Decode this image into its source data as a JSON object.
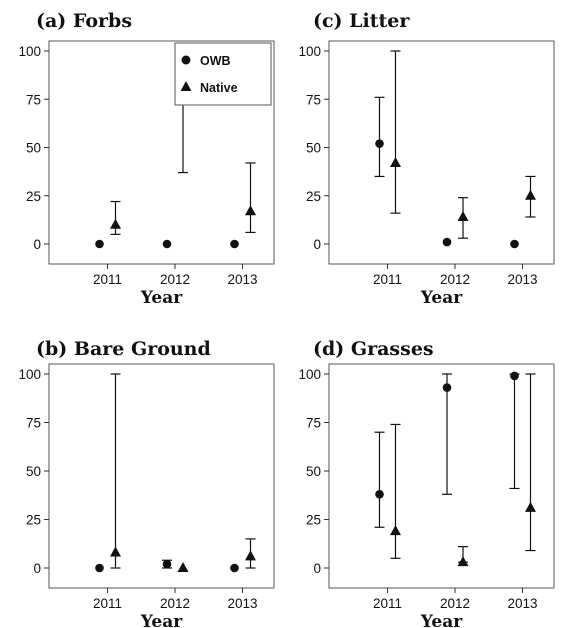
{
  "chart_data": [
    {
      "type": "scatter",
      "title": "(a) Forbs",
      "xlabel": "Year",
      "ylabel": "",
      "categories": [
        "2011",
        "2012",
        "2013"
      ],
      "ylim": [
        0,
        100
      ],
      "yticks": [
        0,
        25,
        50,
        75,
        100
      ],
      "legend": {
        "placement": "top-right",
        "entries": [
          "OWB",
          "Native"
        ]
      },
      "series": [
        {
          "name": "OWB",
          "marker": "circle",
          "values": [
            0,
            0,
            0
          ],
          "lower": [
            0,
            0,
            0
          ],
          "upper": [
            0,
            0,
            0
          ]
        },
        {
          "name": "Native",
          "marker": "triangle",
          "values": [
            10,
            95,
            17
          ],
          "lower": [
            5,
            37,
            6
          ],
          "upper": [
            22,
            100,
            42
          ]
        }
      ]
    },
    {
      "type": "scatter",
      "title": "(c) Litter",
      "xlabel": "Year",
      "ylabel": "",
      "categories": [
        "2011",
        "2012",
        "2013"
      ],
      "ylim": [
        0,
        100
      ],
      "yticks": [
        0,
        25,
        50,
        75,
        100
      ],
      "series": [
        {
          "name": "OWB",
          "marker": "circle",
          "values": [
            52,
            1,
            0
          ],
          "lower": [
            35,
            1,
            0
          ],
          "upper": [
            76,
            1,
            0
          ]
        },
        {
          "name": "Native",
          "marker": "triangle",
          "values": [
            42,
            14,
            25
          ],
          "lower": [
            16,
            3,
            14
          ],
          "upper": [
            100,
            24,
            35
          ]
        }
      ]
    },
    {
      "type": "scatter",
      "title": "(b) Bare Ground",
      "xlabel": "Year",
      "ylabel": "",
      "categories": [
        "2011",
        "2012",
        "2013"
      ],
      "ylim": [
        0,
        100
      ],
      "yticks": [
        0,
        25,
        50,
        75,
        100
      ],
      "series": [
        {
          "name": "OWB",
          "marker": "circle",
          "values": [
            0,
            2,
            0
          ],
          "lower": [
            0,
            0,
            0
          ],
          "upper": [
            0,
            4,
            0
          ]
        },
        {
          "name": "Native",
          "marker": "triangle",
          "values": [
            8,
            0,
            6
          ],
          "lower": [
            0,
            0,
            0
          ],
          "upper": [
            100,
            0,
            15
          ]
        }
      ]
    },
    {
      "type": "scatter",
      "title": "(d) Grasses",
      "xlabel": "Year",
      "ylabel": "",
      "categories": [
        "2011",
        "2012",
        "2013"
      ],
      "ylim": [
        0,
        100
      ],
      "yticks": [
        0,
        25,
        50,
        75,
        100
      ],
      "series": [
        {
          "name": "OWB",
          "marker": "circle",
          "values": [
            38,
            93,
            99
          ],
          "lower": [
            21,
            38,
            41
          ],
          "upper": [
            70,
            100,
            100
          ]
        },
        {
          "name": "Native",
          "marker": "triangle",
          "values": [
            19,
            3,
            31
          ],
          "lower": [
            5,
            3,
            9
          ],
          "upper": [
            74,
            11,
            100
          ]
        }
      ]
    }
  ]
}
